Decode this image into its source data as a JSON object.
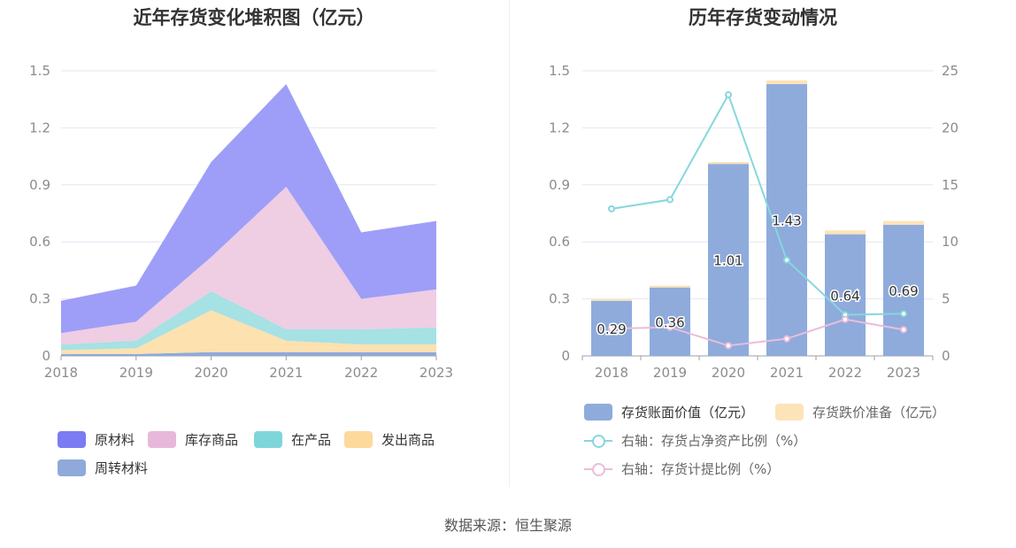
{
  "source_label": "数据来源：恒生聚源",
  "chart_data": [
    {
      "type": "area",
      "stacked": true,
      "title": "近年存货变化堆积图（亿元）",
      "categories": [
        "2018",
        "2019",
        "2020",
        "2021",
        "2022",
        "2023"
      ],
      "ylim": [
        0,
        1.5
      ],
      "yticks": [
        "0",
        "0.3",
        "0.6",
        "0.9",
        "1.2",
        "1.5"
      ],
      "grid": true,
      "legend_position": "bottom",
      "series": [
        {
          "name": "周转材料",
          "color": "#8fa9da",
          "values": [
            0.01,
            0.01,
            0.02,
            0.02,
            0.02,
            0.02
          ]
        },
        {
          "name": "发出商品",
          "color": "#fde1ae",
          "values": [
            0.02,
            0.03,
            0.22,
            0.06,
            0.04,
            0.04
          ]
        },
        {
          "name": "在产品",
          "color": "#a6e1e4",
          "values": [
            0.03,
            0.04,
            0.1,
            0.06,
            0.08,
            0.09
          ]
        },
        {
          "name": "库存商品",
          "color": "#efcde3",
          "values": [
            0.06,
            0.1,
            0.18,
            0.75,
            0.16,
            0.2
          ]
        },
        {
          "name": "原材料",
          "color": "#9e9ef8",
          "values": [
            0.17,
            0.19,
            0.5,
            0.54,
            0.35,
            0.36
          ]
        }
      ],
      "legend": [
        {
          "name": "原材料",
          "color": "#7b7bf3"
        },
        {
          "name": "库存商品",
          "color": "#e8b8da"
        },
        {
          "name": "在产品",
          "color": "#7fd6da"
        },
        {
          "name": "发出商品",
          "color": "#fed99c"
        },
        {
          "name": "周转材料",
          "color": "#8fa9da"
        }
      ]
    },
    {
      "type": "bar",
      "stacked": true,
      "title": "历年存货变动情况",
      "categories": [
        "2018",
        "2019",
        "2020",
        "2021",
        "2022",
        "2023"
      ],
      "ylim": [
        0,
        1.5
      ],
      "yticks": [
        "0",
        "0.3",
        "0.6",
        "0.9",
        "1.2",
        "1.5"
      ],
      "y2lim": [
        0,
        25
      ],
      "y2ticks": [
        "0",
        "5",
        "10",
        "15",
        "20",
        "25"
      ],
      "grid": true,
      "legend_position": "bottom",
      "series": [
        {
          "name": "存货账面价值（亿元）",
          "color": "#8eabdc",
          "values": [
            0.29,
            0.36,
            1.01,
            1.43,
            0.64,
            0.69
          ],
          "labels": [
            "0.29",
            "0.36",
            "1.01",
            "1.43",
            "0.64",
            "0.69"
          ]
        },
        {
          "name": "存货跌价准备（亿元）",
          "color": "#fde3b8",
          "values": [
            0.01,
            0.01,
            0.01,
            0.02,
            0.02,
            0.02
          ]
        }
      ],
      "line_series": [
        {
          "name": "右轴：存货占净资产比例（%）",
          "color": "#86d7dd",
          "values": [
            12.9,
            13.7,
            22.9,
            8.4,
            3.6,
            3.7
          ]
        },
        {
          "name": "右轴：存货计提比例（%）",
          "color": "#ebbcdb",
          "values": [
            2.4,
            2.5,
            0.9,
            1.5,
            3.2,
            2.3
          ]
        }
      ]
    }
  ]
}
